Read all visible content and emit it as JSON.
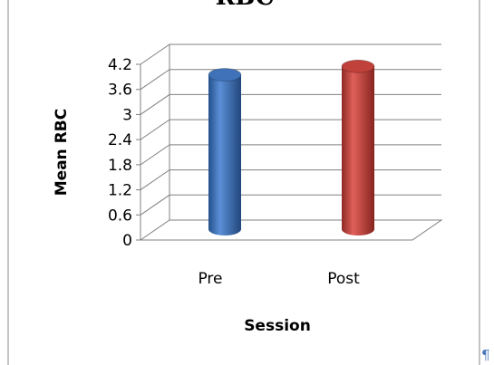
{
  "chart_data": {
    "type": "bar",
    "style": "3d-cylinder",
    "title": "RBC",
    "xlabel": "Session",
    "ylabel": "Mean RBC",
    "categories": [
      "Pre",
      "Post"
    ],
    "values": [
      3.95,
      4.15
    ],
    "bar_colors": [
      "#3f72b8",
      "#c0403a"
    ],
    "ylim": [
      0,
      4.2
    ],
    "yticks": [
      "0",
      "0.6",
      "1.2",
      "1.8",
      "2.4",
      "3",
      "3.6",
      "4.2"
    ],
    "grid": true,
    "legend": "none"
  },
  "paragraph_mark": "¶"
}
